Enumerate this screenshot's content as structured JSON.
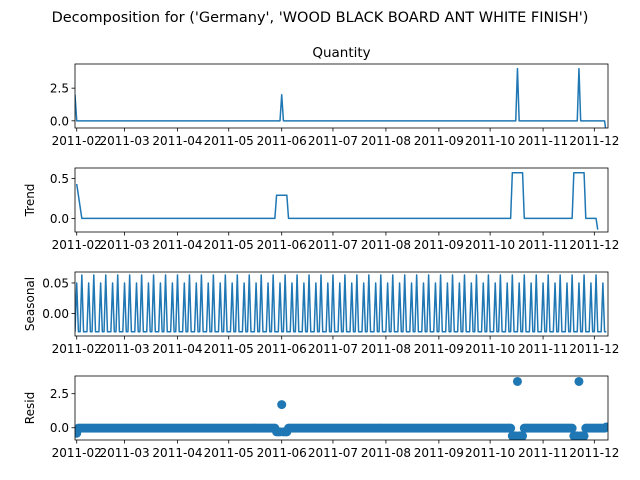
{
  "figure": {
    "suptitle": "Decomposition for ('Germany', 'WOOD BLACK BOARD ANT WHITE FINISH')"
  },
  "style": {
    "line_color": "#1f77b4",
    "axis_color": "#000000",
    "background": "#ffffff"
  },
  "chart_data": [
    {
      "type": "line",
      "title": "Quantity",
      "ylabel": "",
      "xlim": [
        "2011-01-31",
        "2011-12-09"
      ],
      "ylim": [
        -0.55,
        4.35
      ],
      "yticks": [
        0.0,
        2.5
      ],
      "ytick_labels": [
        "0.0",
        "2.5"
      ],
      "xticks": [
        "2011-02-01",
        "2011-03-01",
        "2011-04-01",
        "2011-05-01",
        "2011-06-01",
        "2011-07-01",
        "2011-08-01",
        "2011-09-01",
        "2011-10-01",
        "2011-11-01",
        "2011-12-01"
      ],
      "xtick_labels": [
        "2011-02",
        "2011-03",
        "2011-04",
        "2011-05",
        "2011-06",
        "2011-07",
        "2011-08",
        "2011-09",
        "2011-10",
        "2011-11",
        "2011-12"
      ],
      "grid": false,
      "series": [
        {
          "x": [
            "2011-01-31",
            "2011-02-01",
            "2011-05-31",
            "2011-06-01",
            "2011-06-02",
            "2011-10-16",
            "2011-10-17",
            "2011-10-18",
            "2011-11-21",
            "2011-11-22",
            "2011-11-23",
            "2011-12-07",
            "2011-12-08"
          ],
          "values": [
            2.0,
            0.0,
            0.0,
            2.0,
            0.0,
            0.0,
            4.0,
            0.0,
            0.0,
            4.0,
            0.0,
            0.0,
            -1.0
          ]
        }
      ]
    },
    {
      "type": "line",
      "title": "",
      "ylabel": "Trend",
      "xlim": [
        "2011-01-31",
        "2011-12-09"
      ],
      "ylim": [
        -0.17,
        0.63
      ],
      "yticks": [
        0.0,
        0.5
      ],
      "ytick_labels": [
        "0.0",
        "0.5"
      ],
      "xticks": [
        "2011-02-01",
        "2011-03-01",
        "2011-04-01",
        "2011-05-01",
        "2011-06-01",
        "2011-07-01",
        "2011-08-01",
        "2011-09-01",
        "2011-10-01",
        "2011-11-01",
        "2011-12-01"
      ],
      "xtick_labels": [
        "2011-02",
        "2011-03",
        "2011-04",
        "2011-05",
        "2011-06",
        "2011-07",
        "2011-08",
        "2011-09",
        "2011-10",
        "2011-11",
        "2011-12"
      ],
      "grid": false,
      "series": [
        {
          "x": [
            "2011-02-01",
            "2011-02-04",
            "2011-05-28",
            "2011-05-29",
            "2011-06-04",
            "2011-06-05",
            "2011-10-13",
            "2011-10-14",
            "2011-10-20",
            "2011-10-21",
            "2011-11-18",
            "2011-11-19",
            "2011-11-25",
            "2011-11-26",
            "2011-12-02",
            "2011-12-03"
          ],
          "values": [
            0.43,
            0.0,
            0.0,
            0.29,
            0.29,
            0.0,
            0.0,
            0.57,
            0.57,
            0.0,
            0.0,
            0.57,
            0.57,
            0.0,
            0.0,
            -0.14
          ]
        }
      ]
    },
    {
      "type": "line",
      "title": "",
      "ylabel": "Seasonal",
      "xlim": [
        "2011-01-31",
        "2011-12-09"
      ],
      "ylim": [
        -0.037,
        0.068
      ],
      "yticks": [
        0.0,
        0.05
      ],
      "ytick_labels": [
        "0.00",
        "0.05"
      ],
      "xticks": [
        "2011-02-01",
        "2011-03-01",
        "2011-04-01",
        "2011-05-01",
        "2011-06-01",
        "2011-07-01",
        "2011-08-01",
        "2011-09-01",
        "2011-10-01",
        "2011-11-01",
        "2011-12-01"
      ],
      "xtick_labels": [
        "2011-02",
        "2011-03",
        "2011-04",
        "2011-05",
        "2011-06",
        "2011-07",
        "2011-08",
        "2011-09",
        "2011-10",
        "2011-11",
        "2011-12"
      ],
      "grid": false,
      "series": [
        {
          "period_days": 7,
          "start": "2011-01-31",
          "end": "2011-12-08",
          "pattern": [
            -0.03,
            0.05,
            -0.03,
            -0.03,
            0.063,
            -0.03,
            -0.03
          ]
        }
      ]
    },
    {
      "type": "scatter",
      "title": "",
      "ylabel": "Resid",
      "xlim": [
        "2011-01-31",
        "2011-12-09"
      ],
      "ylim": [
        -0.9,
        3.8
      ],
      "yticks": [
        0.0,
        2.5
      ],
      "ytick_labels": [
        "0.0",
        "2.5"
      ],
      "xticks": [
        "2011-02-01",
        "2011-03-01",
        "2011-04-01",
        "2011-05-01",
        "2011-06-01",
        "2011-07-01",
        "2011-08-01",
        "2011-09-01",
        "2011-10-01",
        "2011-11-01",
        "2011-12-01"
      ],
      "xtick_labels": [
        "2011-02",
        "2011-03",
        "2011-04",
        "2011-05",
        "2011-06",
        "2011-07",
        "2011-08",
        "2011-09",
        "2011-10",
        "2011-11",
        "2011-12"
      ],
      "grid": false,
      "baseline_value": -0.03,
      "series": [
        {
          "x": [
            "2011-01-31",
            "2011-02-01",
            "2011-05-29",
            "2011-05-30",
            "2011-05-31",
            "2011-06-01",
            "2011-06-02",
            "2011-06-03",
            "2011-06-04",
            "2011-10-14",
            "2011-10-15",
            "2011-10-16",
            "2011-10-17",
            "2011-10-18",
            "2011-10-19",
            "2011-10-20",
            "2011-11-19",
            "2011-11-20",
            "2011-11-21",
            "2011-11-22",
            "2011-11-23",
            "2011-11-24",
            "2011-11-25",
            "2011-12-08"
          ],
          "values": [
            -0.4,
            -0.4,
            -0.3,
            -0.3,
            -0.3,
            1.7,
            -0.3,
            -0.3,
            -0.3,
            -0.6,
            -0.6,
            -0.6,
            3.4,
            -0.6,
            -0.6,
            -0.6,
            -0.6,
            -0.6,
            -0.6,
            3.4,
            -0.6,
            -0.6,
            -0.6,
            0.05
          ]
        }
      ]
    }
  ]
}
